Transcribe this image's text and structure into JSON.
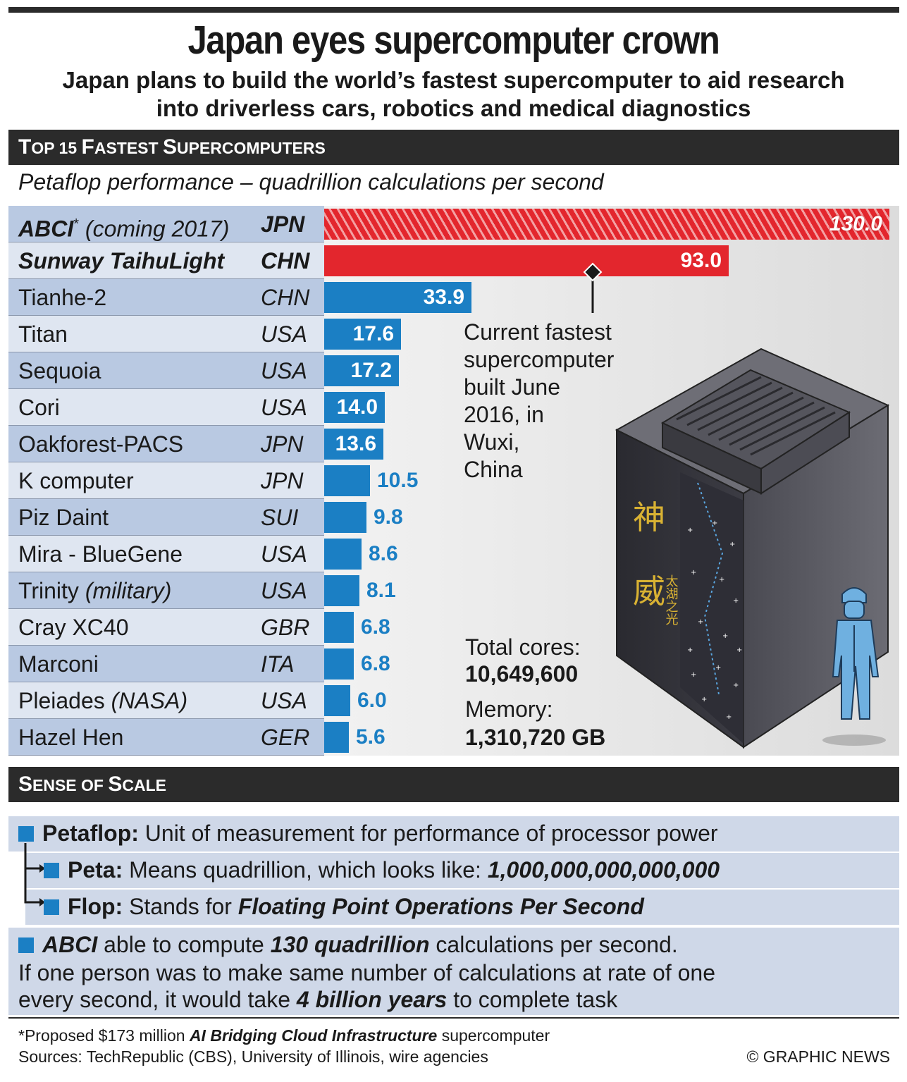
{
  "title": "Japan eyes supercomputer crown",
  "subtitle_line1": "Japan plans to build the world’s fastest supercomputer to aid research",
  "subtitle_line2": "into driverless cars, robotics and medical diagnostics",
  "section1_heading": {
    "first": "T",
    "rest": "OP 15 ",
    "f2": "F",
    "r2": "ASTEST ",
    "f3": "S",
    "r3": "UPERCOMPUTERS"
  },
  "chart_note": "Petaflop performance – quadrillion calculations per second",
  "chart_data": {
    "type": "bar",
    "title": "Top 15 Fastest Supercomputers",
    "xlabel": "Petaflop performance – quadrillion calculations per second",
    "xlim": [
      0,
      130
    ],
    "orientation": "horizontal",
    "rows": [
      {
        "name": "ABCI",
        "sup": "*",
        "note": "(coming 2017)",
        "country": "JPN",
        "value": 130.0,
        "label": "130.0",
        "color": "#e3262d",
        "hatched": true,
        "bold": true
      },
      {
        "name": "Sunway TaihuLight",
        "note": "",
        "country": "CHN",
        "value": 93.0,
        "label": "93.0",
        "color": "#e3262d",
        "bold": true
      },
      {
        "name": "Tianhe-2",
        "note": "",
        "country": "CHN",
        "value": 33.9,
        "label": "33.9",
        "color": "#1b7fc4"
      },
      {
        "name": "Titan",
        "note": "",
        "country": "USA",
        "value": 17.6,
        "label": "17.6",
        "color": "#1b7fc4"
      },
      {
        "name": "Sequoia",
        "note": "",
        "country": "USA",
        "value": 17.2,
        "label": "17.2",
        "color": "#1b7fc4"
      },
      {
        "name": "Cori",
        "note": "",
        "country": "USA",
        "value": 14.0,
        "label": "14.0",
        "color": "#1b7fc4"
      },
      {
        "name": "Oakforest-PACS",
        "note": "",
        "country": "JPN",
        "value": 13.6,
        "label": "13.6",
        "color": "#1b7fc4"
      },
      {
        "name": "K computer",
        "note": "",
        "country": "JPN",
        "value": 10.5,
        "label": "10.5",
        "color": "#1b7fc4"
      },
      {
        "name": "Piz Daint",
        "note": "",
        "country": "SUI",
        "value": 9.8,
        "label": "9.8",
        "color": "#1b7fc4"
      },
      {
        "name": "Mira - BlueGene",
        "note": "",
        "country": "USA",
        "value": 8.6,
        "label": "8.6",
        "color": "#1b7fc4"
      },
      {
        "name": "Trinity",
        "note": "(military)",
        "country": "USA",
        "value": 8.1,
        "label": "8.1",
        "color": "#1b7fc4"
      },
      {
        "name": "Cray XC40",
        "note": "",
        "country": "GBR",
        "value": 6.8,
        "label": "6.8",
        "color": "#1b7fc4"
      },
      {
        "name": "Marconi",
        "note": "",
        "country": "ITA",
        "value": 6.8,
        "label": "6.8",
        "color": "#1b7fc4"
      },
      {
        "name": "Pleiades",
        "note": "(NASA)",
        "country": "USA",
        "value": 6.0,
        "label": "6.0",
        "color": "#1b7fc4"
      },
      {
        "name": "Hazel Hen",
        "note": "",
        "country": "GER",
        "value": 5.6,
        "label": "5.6",
        "color": "#1b7fc4"
      }
    ]
  },
  "callout": {
    "lines": [
      "Current fastest",
      "supercomputer",
      "built June",
      "2016, in",
      "Wuxi,",
      "China"
    ],
    "cores_label": "Total cores:",
    "cores_value": "10,649,600",
    "memory_label": "Memory:",
    "memory_value": "1,310,720 GB"
  },
  "section2_heading": {
    "f1": "S",
    "r1": "ENSE OF ",
    "f2": "S",
    "r2": "CALE"
  },
  "scale": {
    "petaflop_term": "Petaflop:",
    "petaflop_def": " Unit of measurement for performance of processor power",
    "peta_term": "Peta:",
    "peta_def": " Means quadrillion, which looks like: ",
    "peta_number": "1,000,000,000,000,000",
    "flop_term": "Flop:",
    "flop_def": " Stands for ",
    "flop_expansion": "Floating Point Operations Per Second",
    "abci_name": "ABCI",
    "abci_a": " able to compute ",
    "abci_b": "130 quadrillion",
    "abci_c": " calculations per second.",
    "line2": "If one person was to make same number of calculations at rate of one",
    "line3a": "every second, it would take ",
    "line3b": "4 billion years",
    "line3c": " to complete task"
  },
  "footer": {
    "note_a": "*Proposed $173 million ",
    "note_b": "AI Bridging Cloud Infrastructure",
    "note_c": " supercomputer",
    "sources": "Sources: TechRepublic (CBS), University of Illinois, wire agencies",
    "credit": "© GRAPHIC NEWS"
  },
  "illustration": {
    "glyph1": "神",
    "glyph2": "威",
    "side_text": "太湖之光"
  }
}
